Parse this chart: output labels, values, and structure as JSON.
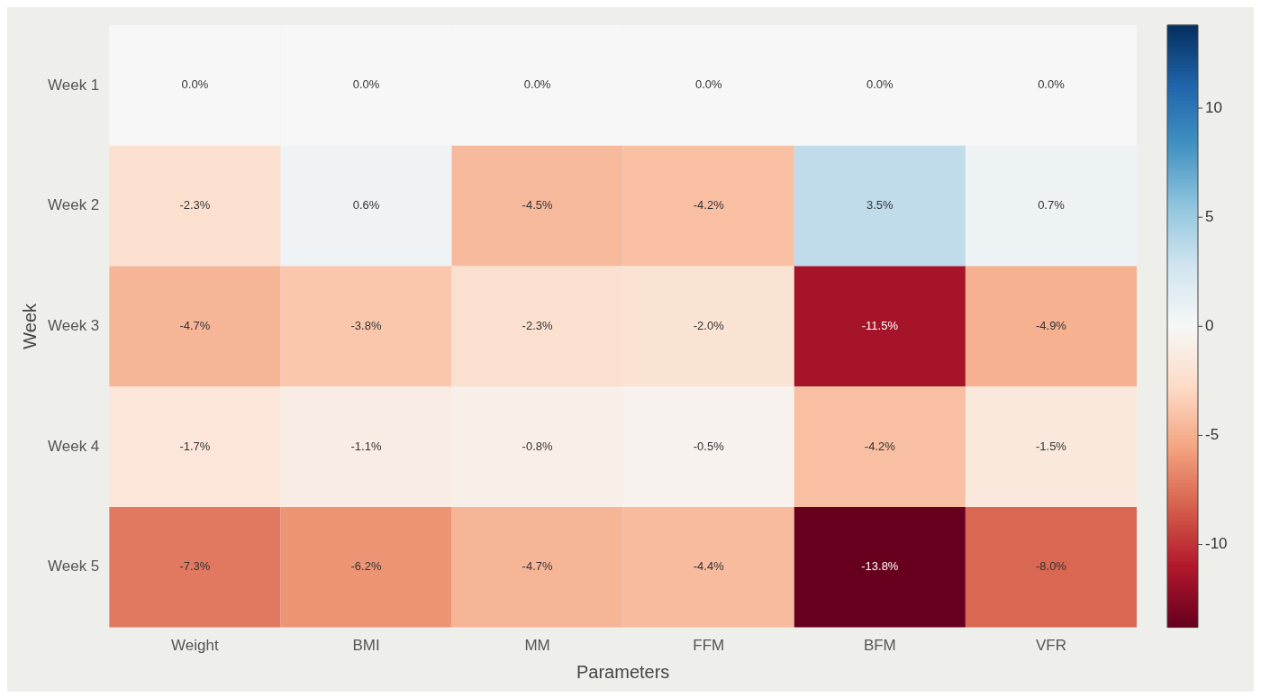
{
  "chart_data": {
    "type": "heatmap",
    "xlabel": "Parameters",
    "ylabel": "Week",
    "categories": [
      "Weight",
      "BMI",
      "MM",
      "FFM",
      "BFM",
      "VFR"
    ],
    "y_categories": [
      "Week 1",
      "Week 2",
      "Week 3",
      "Week 4",
      "Week 5"
    ],
    "cells": [
      [
        0.0,
        0.0,
        0.0,
        0.0,
        0.0,
        0.0
      ],
      [
        -2.3,
        0.6,
        -4.5,
        -4.2,
        3.5,
        0.7
      ],
      [
        -4.7,
        -3.8,
        -2.3,
        -2.0,
        -11.5,
        -4.9
      ],
      [
        -1.7,
        -1.1,
        -0.8,
        -0.5,
        -4.2,
        -1.5
      ],
      [
        -7.3,
        -6.2,
        -4.7,
        -4.4,
        -13.8,
        -8.0
      ]
    ],
    "cell_labels": [
      [
        "0.0%",
        "0.0%",
        "0.0%",
        "0.0%",
        "0.0%",
        "0.0%"
      ],
      [
        "-2.3%",
        "0.6%",
        "-4.5%",
        "-4.2%",
        "3.5%",
        "0.7%"
      ],
      [
        "-4.7%",
        "-3.8%",
        "-2.3%",
        "-2.0%",
        "-11.5%",
        "-4.9%"
      ],
      [
        "-1.7%",
        "-1.1%",
        "-0.8%",
        "-0.5%",
        "-4.2%",
        "-1.5%"
      ],
      [
        "-7.3%",
        "-6.2%",
        "-4.7%",
        "-4.4%",
        "-13.8%",
        "-8.0%"
      ]
    ],
    "clim": [
      -13.8,
      13.8
    ],
    "cticks": [
      -10,
      -5,
      0,
      5,
      10
    ]
  }
}
